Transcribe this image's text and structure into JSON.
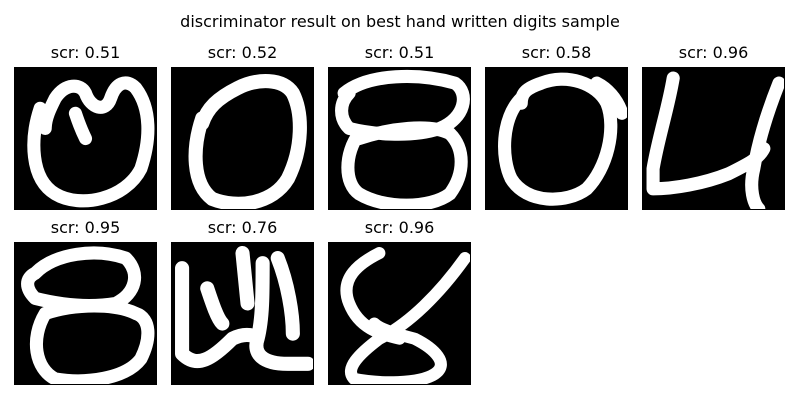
{
  "figure": {
    "title": "discriminator result on best hand written digits sample"
  },
  "samples": [
    {
      "score_label": "scr: 0.51",
      "score": 0.51
    },
    {
      "score_label": "scr: 0.52",
      "score": 0.52
    },
    {
      "score_label": "scr: 0.51",
      "score": 0.51
    },
    {
      "score_label": "scr: 0.58",
      "score": 0.58
    },
    {
      "score_label": "scr: 0.96",
      "score": 0.96
    },
    {
      "score_label": "scr: 0.95",
      "score": 0.95
    },
    {
      "score_label": "scr: 0.76",
      "score": 0.76
    },
    {
      "score_label": "scr: 0.96",
      "score": 0.96
    }
  ]
}
